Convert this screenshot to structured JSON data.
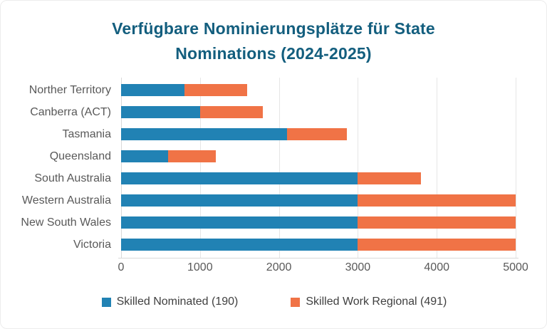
{
  "chart_data": {
    "type": "bar",
    "orientation": "horizontal",
    "stacked": true,
    "title": "Verfügbare Nominierungsplätze für State Nominations (2024-2025)",
    "title_color": "#135E7E",
    "categories": [
      "Norther Territory",
      "Canberra (ACT)",
      "Tasmania",
      "Queensland",
      "South Australia",
      "Western Australia",
      "New South Wales",
      "Victoria"
    ],
    "series": [
      {
        "name": "Skilled Nominated (190)",
        "color": "#2182B4",
        "values": [
          800,
          1000,
          2100,
          600,
          3000,
          3000,
          3000,
          3000
        ]
      },
      {
        "name": "Skilled Work Regional (491)",
        "color": "#F07346",
        "values": [
          800,
          800,
          760,
          600,
          800,
          2000,
          2000,
          2000
        ]
      }
    ],
    "totals": [
      1600,
      1800,
      2860,
      1200,
      3800,
      5000,
      5000,
      5000
    ],
    "xlabel": "",
    "ylabel": "",
    "xlim": [
      0,
      5000
    ],
    "xticks": [
      0,
      1000,
      2000,
      3000,
      4000,
      5000
    ],
    "grid": "vertical",
    "legend_position": "bottom",
    "axis_text_color": "#595959",
    "grid_color": "#e6e6e6"
  }
}
